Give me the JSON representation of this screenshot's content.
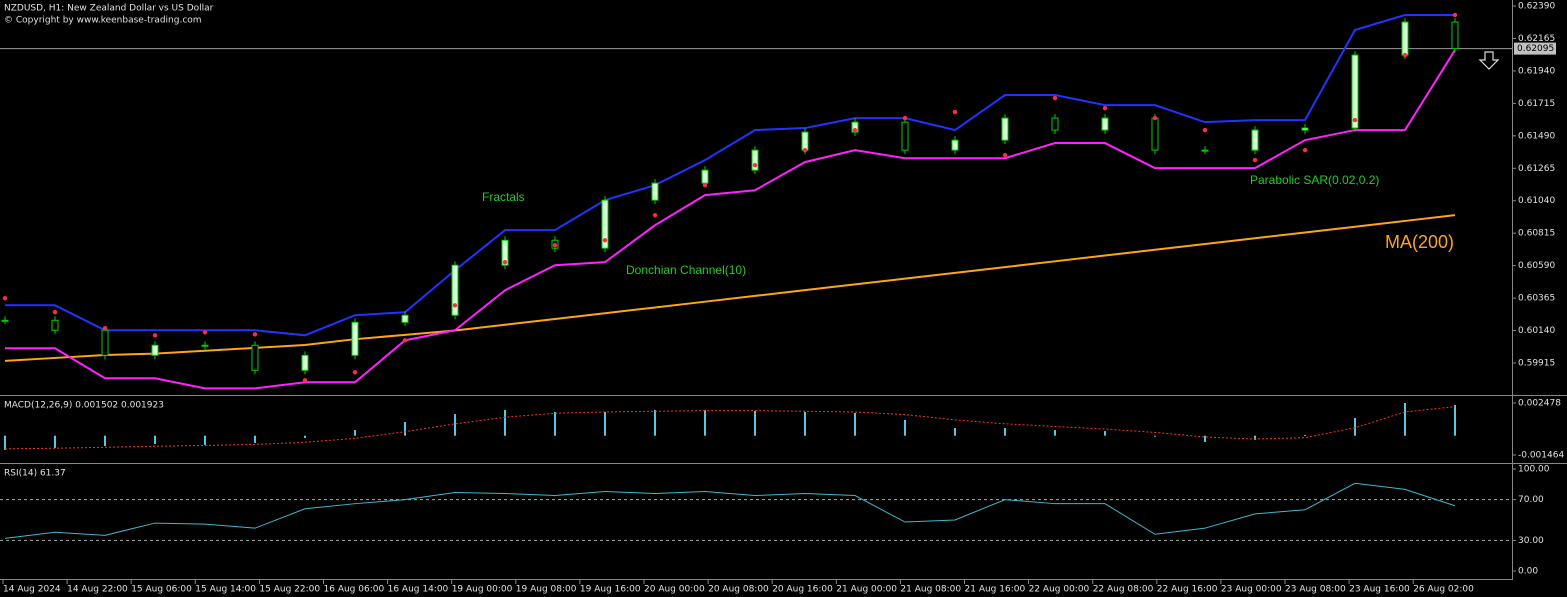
{
  "chart_data": [
    {
      "type": "candlestick",
      "title": "NZDUSD, H1:  New Zealand Dollar vs US Dollar",
      "subtitle": "© Copyright by www.keenbase-trading.com",
      "ylim": [
        0.59693,
        0.62432
      ],
      "yticks": [
        {
          "value": 0.6239,
          "label": "0.62390"
        },
        0.62165,
        {
          "value": 0.6194,
          "label": "0.61940"
        },
        0.61715,
        {
          "value": 0.6149,
          "label": "0.61490"
        },
        0.61265,
        {
          "value": 0.6104,
          "label": "0.61040"
        },
        0.60815,
        {
          "value": 0.6059,
          "label": "0.60590"
        },
        0.60365,
        {
          "value": 0.6014,
          "label": "0.60140"
        },
        0.59915
      ],
      "last_price": 0.62095,
      "up_color": "#d8ffd8",
      "down_color": "#000000",
      "edge_color": "#00d000",
      "close": [
        0.60211,
        0.60142,
        0.59968,
        0.60038,
        0.60038,
        0.59864,
        0.59968,
        0.60197,
        0.60246,
        0.60593,
        0.60766,
        0.60711,
        0.61044,
        0.61162,
        0.61252,
        0.61391,
        0.61516,
        0.61585,
        0.61391,
        0.6146,
        0.61613,
        0.6153,
        0.61613,
        0.61391,
        0.61391,
        0.6153,
        0.61544,
        0.6205,
        0.62279,
        0.62095
      ],
      "ma": {
        "label": "MA(200)",
        "color": "#ffa31a",
        "values": [
          0.5993,
          0.5995,
          0.5997,
          0.5998,
          0.6,
          0.6002,
          0.6004,
          0.6008,
          0.6011,
          0.6014,
          0.6018,
          0.6022,
          0.6026,
          0.603,
          0.6034,
          0.6038,
          0.6042,
          0.6046,
          0.605,
          0.6054,
          0.6058,
          0.6062,
          0.6066,
          0.607,
          0.6074,
          0.6078,
          0.6082,
          0.6086,
          0.609,
          0.6094
        ]
      },
      "donchian": {
        "label": "Donchian Channel(10)",
        "upper_color": "#2233ff",
        "lower_color": "#ff22ff",
        "upper": [
          0.60315,
          0.60315,
          0.60142,
          0.60142,
          0.60142,
          0.60142,
          0.60107,
          0.60246,
          0.60267,
          0.60558,
          0.60836,
          0.60836,
          0.61044,
          0.61148,
          0.61322,
          0.6153,
          0.61544,
          0.61613,
          0.61613,
          0.6153,
          0.61773,
          0.61773,
          0.61703,
          0.61703,
          0.61585,
          0.61599,
          0.61599,
          0.62224,
          0.62328,
          0.62328
        ],
        "lower": [
          0.60017,
          0.60017,
          0.59809,
          0.59809,
          0.59739,
          0.59739,
          0.59781,
          0.59781,
          0.60072,
          0.60142,
          0.60419,
          0.60593,
          0.60614,
          0.6087,
          0.61079,
          0.61113,
          0.61308,
          0.61391,
          0.61335,
          0.61335,
          0.61335,
          0.6144,
          0.6144,
          0.61266,
          0.61266,
          0.61266,
          0.6146,
          0.6153,
          0.6153,
          0.62085
        ]
      },
      "sar": {
        "label": "Parabolic SAR(0.02,0.2)",
        "color": "#ff2a4a",
        "values": [
          0.60364,
          0.60267,
          0.60156,
          0.60107,
          0.60128,
          0.60114,
          0.59795,
          0.5985,
          0.60072,
          0.60315,
          0.60614,
          0.60732,
          0.60766,
          0.6094,
          0.61148,
          0.61287,
          0.61391,
          0.6153,
          0.61613,
          0.61655,
          0.61356,
          0.61752,
          0.61682,
          0.61613,
          0.6153,
          0.61322,
          0.61391,
          0.61599,
          0.6205,
          0.62328
        ]
      },
      "fractals_label": "Fractals",
      "annotation_color": "#22cc22"
    },
    {
      "type": "macd",
      "title": "MACD(12,26,9) 0.001502 0.001923",
      "ylim": [
        -0.001995,
        0.002933
      ],
      "yticks": [
        0.002478,
        -0.001464
      ],
      "hist_color": "#59c8e0",
      "signal_color": "#ff3030",
      "histogram": [
        -0.00108,
        -0.00093,
        -0.00078,
        -0.00063,
        -0.0007,
        -0.00055,
        -0.00017,
        0.00043,
        0.00104,
        0.00164,
        0.00195,
        0.0018,
        0.0018,
        0.00195,
        0.00195,
        0.00187,
        0.0018,
        0.00172,
        0.00119,
        0.00058,
        0.00058,
        0.00043,
        0.00035,
        -2e-05,
        -0.00048,
        -0.00033,
        5e-05,
        0.00134,
        0.00248,
        0.00233
      ],
      "signal": [
        -0.001,
        -0.00095,
        -0.00088,
        -0.0008,
        -0.00074,
        -0.00066,
        -0.0005,
        -0.0002,
        0.0003,
        0.0009,
        0.0014,
        0.0017,
        0.0018,
        0.00185,
        0.0019,
        0.0019,
        0.00185,
        0.0018,
        0.0016,
        0.0012,
        0.0009,
        0.0007,
        0.0005,
        0.00025,
        -0.0001,
        -0.00025,
        -0.00015,
        0.0006,
        0.0018,
        0.0022
      ]
    },
    {
      "type": "line",
      "title": "RSI(14) 61.37",
      "ylim": [
        -8.8,
        104.9
      ],
      "yticks": [
        {
          "value": 100,
          "label": "100.00"
        },
        {
          "value": 70,
          "label": "70.00"
        },
        {
          "value": 30,
          "label": "30.00"
        },
        {
          "value": 0,
          "label": "0.00"
        }
      ],
      "levels": [
        70,
        30
      ],
      "color": "#3fb8cc",
      "values": [
        32,
        38,
        35,
        47,
        46,
        42,
        61,
        66,
        70,
        77,
        76,
        74,
        78,
        76,
        78,
        74,
        76,
        74,
        48,
        50,
        70,
        66,
        66,
        36,
        42,
        56,
        60,
        86,
        80,
        64
      ],
      "x_labels": [
        "14 Aug 2024",
        "14 Aug 22:00",
        "15 Aug 06:00",
        "15 Aug 14:00",
        "15 Aug 22:00",
        "16 Aug 06:00",
        "16 Aug 14:00",
        "19 Aug 00:00",
        "19 Aug 08:00",
        "19 Aug 16:00",
        "20 Aug 00:00",
        "20 Aug 08:00",
        "20 Aug 16:00",
        "21 Aug 00:00",
        "21 Aug 08:00",
        "21 Aug 16:00",
        "22 Aug 00:00",
        "22 Aug 08:00",
        "22 Aug 16:00",
        "23 Aug 00:00",
        "23 Aug 08:00",
        "23 Aug 16:00",
        "26 Aug 02:00"
      ]
    }
  ]
}
